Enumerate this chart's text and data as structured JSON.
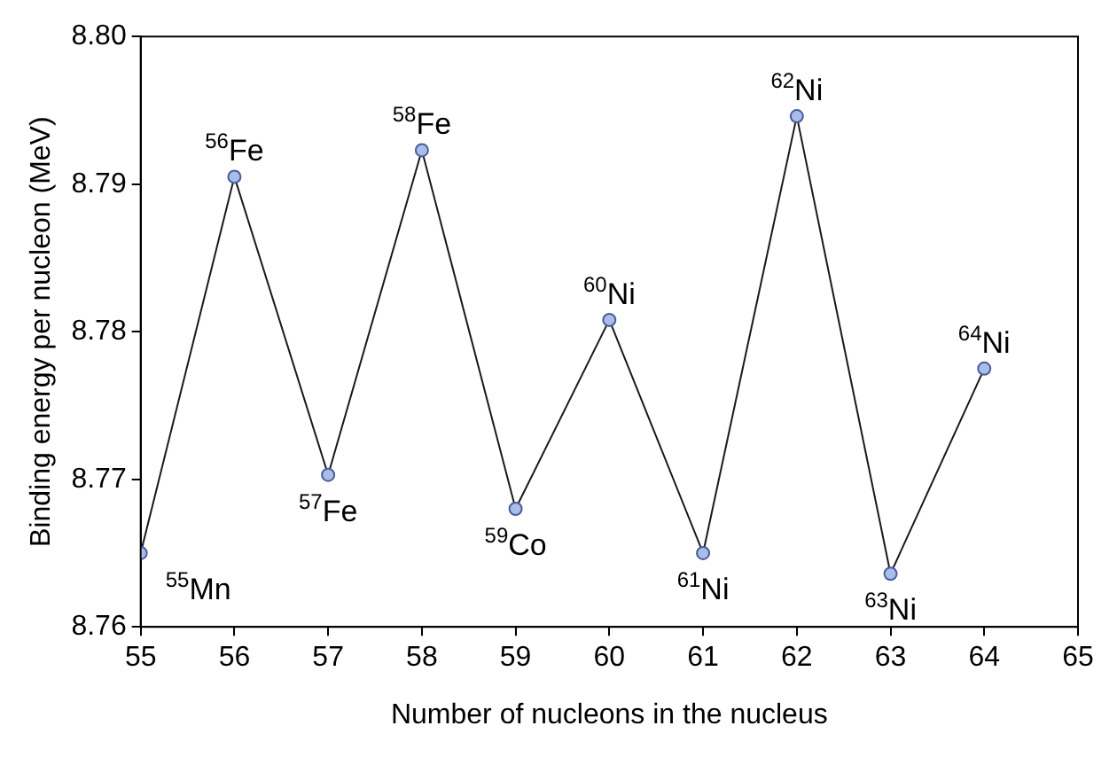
{
  "chart_data": {
    "type": "line",
    "xlabel": "Number of nucleons in the nucleus",
    "ylabel": "Binding energy per nucleon (MeV)",
    "x": [
      55,
      56,
      57,
      58,
      59,
      60,
      61,
      62,
      63,
      64
    ],
    "series": [
      {
        "color": "#1a1a1a",
        "values": [
          8.765,
          8.7905,
          8.7703,
          8.7923,
          8.768,
          8.7808,
          8.765,
          8.7946,
          8.7636,
          8.7775
        ]
      }
    ],
    "xlim": [
      55,
      65
    ],
    "xticks": [
      55,
      56,
      57,
      58,
      59,
      60,
      61,
      62,
      63,
      64,
      65
    ],
    "ylim": [
      8.76,
      8.8
    ],
    "yticks": [
      {
        "value": 8.76,
        "label": "8.76"
      },
      {
        "value": 8.77,
        "label": "8.77"
      },
      {
        "value": 8.78,
        "label": "8.78"
      },
      {
        "value": 8.79,
        "label": "8.79"
      },
      {
        "value": 8.8,
        "label": "8.80"
      }
    ],
    "grid": false,
    "legend": false,
    "marker": "circle",
    "line_style": "solid",
    "annotations": [
      {
        "text": "$^{55}$Mn",
        "x": 55,
        "y": 8.765
      },
      {
        "text": "$^{56}$Fe",
        "x": 56,
        "y": 8.7905
      },
      {
        "text": "$^{57}$Fe",
        "x": 57,
        "y": 8.7703
      },
      {
        "text": "$^{58}$Fe",
        "x": 58,
        "y": 8.7923
      },
      {
        "text": "$^{59}$Co",
        "x": 59,
        "y": 8.768
      },
      {
        "text": "$^{60}$Ni",
        "x": 60,
        "y": 8.7808
      },
      {
        "text": "$^{61}$Ni",
        "x": 61,
        "y": 8.765
      },
      {
        "text": "$^{62}$Ni",
        "x": 62,
        "y": 8.7946
      },
      {
        "text": "$^{63}$Ni",
        "x": 63,
        "y": 8.7636
      },
      {
        "text": "$^{64}$Ni",
        "x": 64,
        "y": 8.7775
      }
    ]
  }
}
